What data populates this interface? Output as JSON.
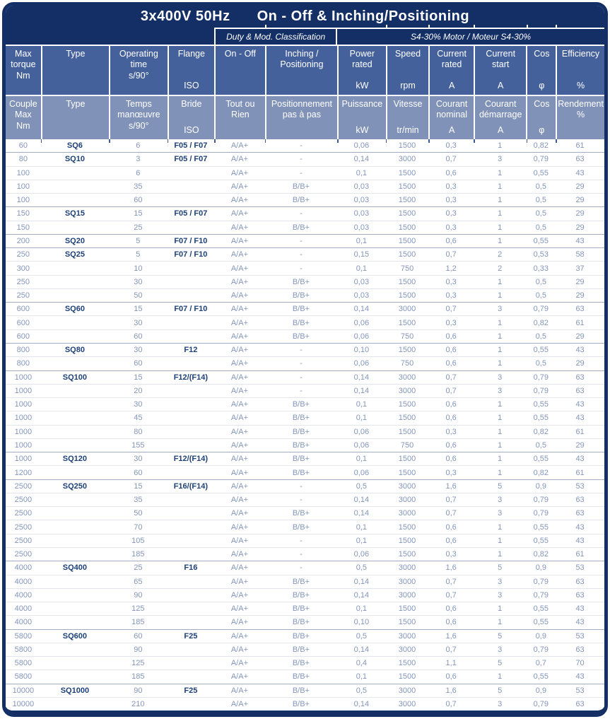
{
  "title": {
    "voltage": "3x400V 50Hz",
    "mode": "On - Off & Inching/Positioning"
  },
  "bands": {
    "duty": "Duty & Mod. Classification",
    "motor": "S4-30% Motor / Moteur S4-30%"
  },
  "header_en": [
    {
      "main": "Max\ntorque\nNm",
      "unit": ""
    },
    {
      "main": "Type",
      "unit": ""
    },
    {
      "main": "Operating\ntime\ns/90°",
      "unit": ""
    },
    {
      "main": "Flange",
      "unit": "ISO"
    },
    {
      "main": "On - Off",
      "unit": ""
    },
    {
      "main": "Inching /\nPositioning",
      "unit": ""
    },
    {
      "main": "Power\nrated",
      "unit": "kW"
    },
    {
      "main": "Speed",
      "unit": "rpm"
    },
    {
      "main": "Current\nrated",
      "unit": "A"
    },
    {
      "main": "Current\nstart",
      "unit": "A"
    },
    {
      "main": "Cos",
      "unit": "φ"
    },
    {
      "main": "Efficiency",
      "unit": "%"
    }
  ],
  "header_fr": [
    {
      "main": "Couple\nMax\nNm",
      "unit": ""
    },
    {
      "main": "Type",
      "unit": ""
    },
    {
      "main": "Temps\nmanœuvre\ns/90°",
      "unit": ""
    },
    {
      "main": "Bride",
      "unit": "ISO"
    },
    {
      "main": "Tout ou\nRien",
      "unit": ""
    },
    {
      "main": "Positionnement\npas à pas",
      "unit": ""
    },
    {
      "main": "Puissance",
      "unit": "kW"
    },
    {
      "main": "Vitesse",
      "unit": "tr/min"
    },
    {
      "main": "Courant\nnominal",
      "unit": "A"
    },
    {
      "main": "Courant\ndémarrage",
      "unit": "A"
    },
    {
      "main": "Cos",
      "unit": "φ"
    },
    {
      "main": "Rendement\n%",
      "unit": ""
    }
  ],
  "table": {
    "columns": [
      "Max torque Nm",
      "Type",
      "Operating time s/90°",
      "Flange ISO",
      "On - Off",
      "Inching / Positioning",
      "Power rated kW",
      "Speed rpm",
      "Current rated A",
      "Current start A",
      "Cos φ",
      "Efficiency %"
    ],
    "group_start_rows": [
      0,
      1,
      5,
      7,
      8,
      12,
      15,
      17,
      23,
      25,
      31,
      36,
      40
    ],
    "rows": [
      [
        "60",
        "SQ6",
        "6",
        "F05 / F07",
        "A/A+",
        "-",
        "0,06",
        "1500",
        "0,3",
        "1",
        "0,82",
        "61"
      ],
      [
        "80",
        "SQ10",
        "3",
        "F05 / F07",
        "A/A+",
        "-",
        "0,14",
        "3000",
        "0,7",
        "3",
        "0,79",
        "63"
      ],
      [
        "100",
        "",
        "6",
        "",
        "A/A+",
        "-",
        "0,1",
        "1500",
        "0,6",
        "1",
        "0,55",
        "43"
      ],
      [
        "100",
        "",
        "35",
        "",
        "A/A+",
        "B/B+",
        "0,03",
        "1500",
        "0,3",
        "1",
        "0,5",
        "29"
      ],
      [
        "100",
        "",
        "60",
        "",
        "A/A+",
        "B/B+",
        "0,03",
        "1500",
        "0,3",
        "1",
        "0,5",
        "29"
      ],
      [
        "150",
        "SQ15",
        "15",
        "F05 / F07",
        "A/A+",
        "-",
        "0,03",
        "1500",
        "0,3",
        "1",
        "0,5",
        "29"
      ],
      [
        "150",
        "",
        "25",
        "",
        "A/A+",
        "B/B+",
        "0,03",
        "1500",
        "0,3",
        "1",
        "0,5",
        "29"
      ],
      [
        "200",
        "SQ20",
        "5",
        "F07 / F10",
        "A/A+",
        "-",
        "0,1",
        "1500",
        "0,6",
        "1",
        "0,55",
        "43"
      ],
      [
        "250",
        "SQ25",
        "5",
        "F07 / F10",
        "A/A+",
        "-",
        "0,15",
        "1500",
        "0,7",
        "2",
        "0,53",
        "58"
      ],
      [
        "300",
        "",
        "10",
        "",
        "A/A+",
        "-",
        "0,1",
        "750",
        "1,2",
        "2",
        "0,33",
        "37"
      ],
      [
        "250",
        "",
        "30",
        "",
        "A/A+",
        "B/B+",
        "0,03",
        "1500",
        "0,3",
        "1",
        "0,5",
        "29"
      ],
      [
        "250",
        "",
        "50",
        "",
        "A/A+",
        "B/B+",
        "0,03",
        "1500",
        "0,3",
        "1",
        "0,5",
        "29"
      ],
      [
        "600",
        "SQ60",
        "15",
        "F07 / F10",
        "A/A+",
        "B/B+",
        "0,14",
        "3000",
        "0,7",
        "3",
        "0,79",
        "63"
      ],
      [
        "600",
        "",
        "30",
        "",
        "A/A+",
        "B/B+",
        "0,06",
        "1500",
        "0,3",
        "1",
        "0,82",
        "61"
      ],
      [
        "600",
        "",
        "60",
        "",
        "A/A+",
        "B/B+",
        "0,06",
        "750",
        "0,6",
        "1",
        "0,5",
        "29"
      ],
      [
        "800",
        "SQ80",
        "30",
        "F12",
        "A/A+",
        "-",
        "0,10",
        "1500",
        "0,6",
        "1",
        "0,55",
        "43"
      ],
      [
        "800",
        "",
        "60",
        "",
        "A/A+",
        "-",
        "0,06",
        "750",
        "0,6",
        "1",
        "0,5",
        "29"
      ],
      [
        "1000",
        "SQ100",
        "15",
        "F12/(F14)",
        "A/A+",
        "-",
        "0,14",
        "3000",
        "0,7",
        "3",
        "0,79",
        "63"
      ],
      [
        "1000",
        "",
        "20",
        "",
        "A/A+",
        "-",
        "0,14",
        "3000",
        "0,7",
        "3",
        "0,79",
        "63"
      ],
      [
        "1000",
        "",
        "30",
        "",
        "A/A+",
        "B/B+",
        "0,1",
        "1500",
        "0,6",
        "1",
        "0,55",
        "43"
      ],
      [
        "1000",
        "",
        "45",
        "",
        "A/A+",
        "B/B+",
        "0,1",
        "1500",
        "0,6",
        "1",
        "0,55",
        "43"
      ],
      [
        "1000",
        "",
        "80",
        "",
        "A/A+",
        "B/B+",
        "0,06",
        "1500",
        "0,3",
        "1",
        "0,82",
        "61"
      ],
      [
        "1000",
        "",
        "155",
        "",
        "A/A+",
        "B/B+",
        "0,06",
        "750",
        "0,6",
        "1",
        "0,5",
        "29"
      ],
      [
        "1000",
        "SQ120",
        "30",
        "F12/(F14)",
        "A/A+",
        "B/B+",
        "0,1",
        "1500",
        "0,6",
        "1",
        "0,55",
        "43"
      ],
      [
        "1200",
        "",
        "60",
        "",
        "A/A+",
        "B/B+",
        "0,06",
        "1500",
        "0,3",
        "1",
        "0,82",
        "61"
      ],
      [
        "2500",
        "SQ250",
        "15",
        "F16/(F14)",
        "A/A+",
        "-",
        "0,5",
        "3000",
        "1,6",
        "5",
        "0,9",
        "53"
      ],
      [
        "2500",
        "",
        "35",
        "",
        "A/A+",
        "-",
        "0,14",
        "3000",
        "0,7",
        "3",
        "0,79",
        "63"
      ],
      [
        "2500",
        "",
        "50",
        "",
        "A/A+",
        "B/B+",
        "0,14",
        "3000",
        "0,7",
        "3",
        "0,79",
        "63"
      ],
      [
        "2500",
        "",
        "70",
        "",
        "A/A+",
        "B/B+",
        "0,1",
        "1500",
        "0,6",
        "1",
        "0,55",
        "43"
      ],
      [
        "2500",
        "",
        "105",
        "",
        "A/A+",
        "-",
        "0,1",
        "1500",
        "0,6",
        "1",
        "0,55",
        "43"
      ],
      [
        "2500",
        "",
        "185",
        "",
        "A/A+",
        "-",
        "0,06",
        "1500",
        "0,3",
        "1",
        "0,82",
        "61"
      ],
      [
        "4000",
        "SQ400",
        "25",
        "F16",
        "A/A+",
        "-",
        "0,5",
        "3000",
        "1,6",
        "5",
        "0,9",
        "53"
      ],
      [
        "4000",
        "",
        "65",
        "",
        "A/A+",
        "B/B+",
        "0,14",
        "3000",
        "0,7",
        "3",
        "0,79",
        "63"
      ],
      [
        "4000",
        "",
        "90",
        "",
        "A/A+",
        "B/B+",
        "0,14",
        "3000",
        "0,7",
        "3",
        "0,79",
        "63"
      ],
      [
        "4000",
        "",
        "125",
        "",
        "A/A+",
        "B/B+",
        "0,1",
        "1500",
        "0,6",
        "1",
        "0,55",
        "43"
      ],
      [
        "4000",
        "",
        "185",
        "",
        "A/A+",
        "B/B+",
        "0,10",
        "1500",
        "0,6",
        "1",
        "0,55",
        "43"
      ],
      [
        "5800",
        "SQ600",
        "60",
        "F25",
        "A/A+",
        "B/B+",
        "0,5",
        "3000",
        "1,6",
        "5",
        "0,9",
        "53"
      ],
      [
        "5800",
        "",
        "90",
        "",
        "A/A+",
        "B/B+",
        "0,14",
        "3000",
        "0,7",
        "3",
        "0,79",
        "63"
      ],
      [
        "5800",
        "",
        "125",
        "",
        "A/A+",
        "B/B+",
        "0,4",
        "1500",
        "1,1",
        "5",
        "0,7",
        "70"
      ],
      [
        "5800",
        "",
        "185",
        "",
        "A/A+",
        "B/B+",
        "0,1",
        "1500",
        "0,6",
        "1",
        "0,55",
        "43"
      ],
      [
        "10000",
        "SQ1000",
        "90",
        "F25",
        "A/A+",
        "B/B+",
        "0,5",
        "3000",
        "1,6",
        "5",
        "0,9",
        "53"
      ],
      [
        "10000",
        "",
        "210",
        "",
        "A/A+",
        "B/B+",
        "0,14",
        "3000",
        "0,7",
        "3",
        "0,79",
        "63"
      ]
    ]
  },
  "colors": {
    "navy": "#132f66",
    "header_blue": "#45619b",
    "french_blue": "#8092b8",
    "data_text": "#8496bb",
    "accent_text": "#1d4077"
  }
}
